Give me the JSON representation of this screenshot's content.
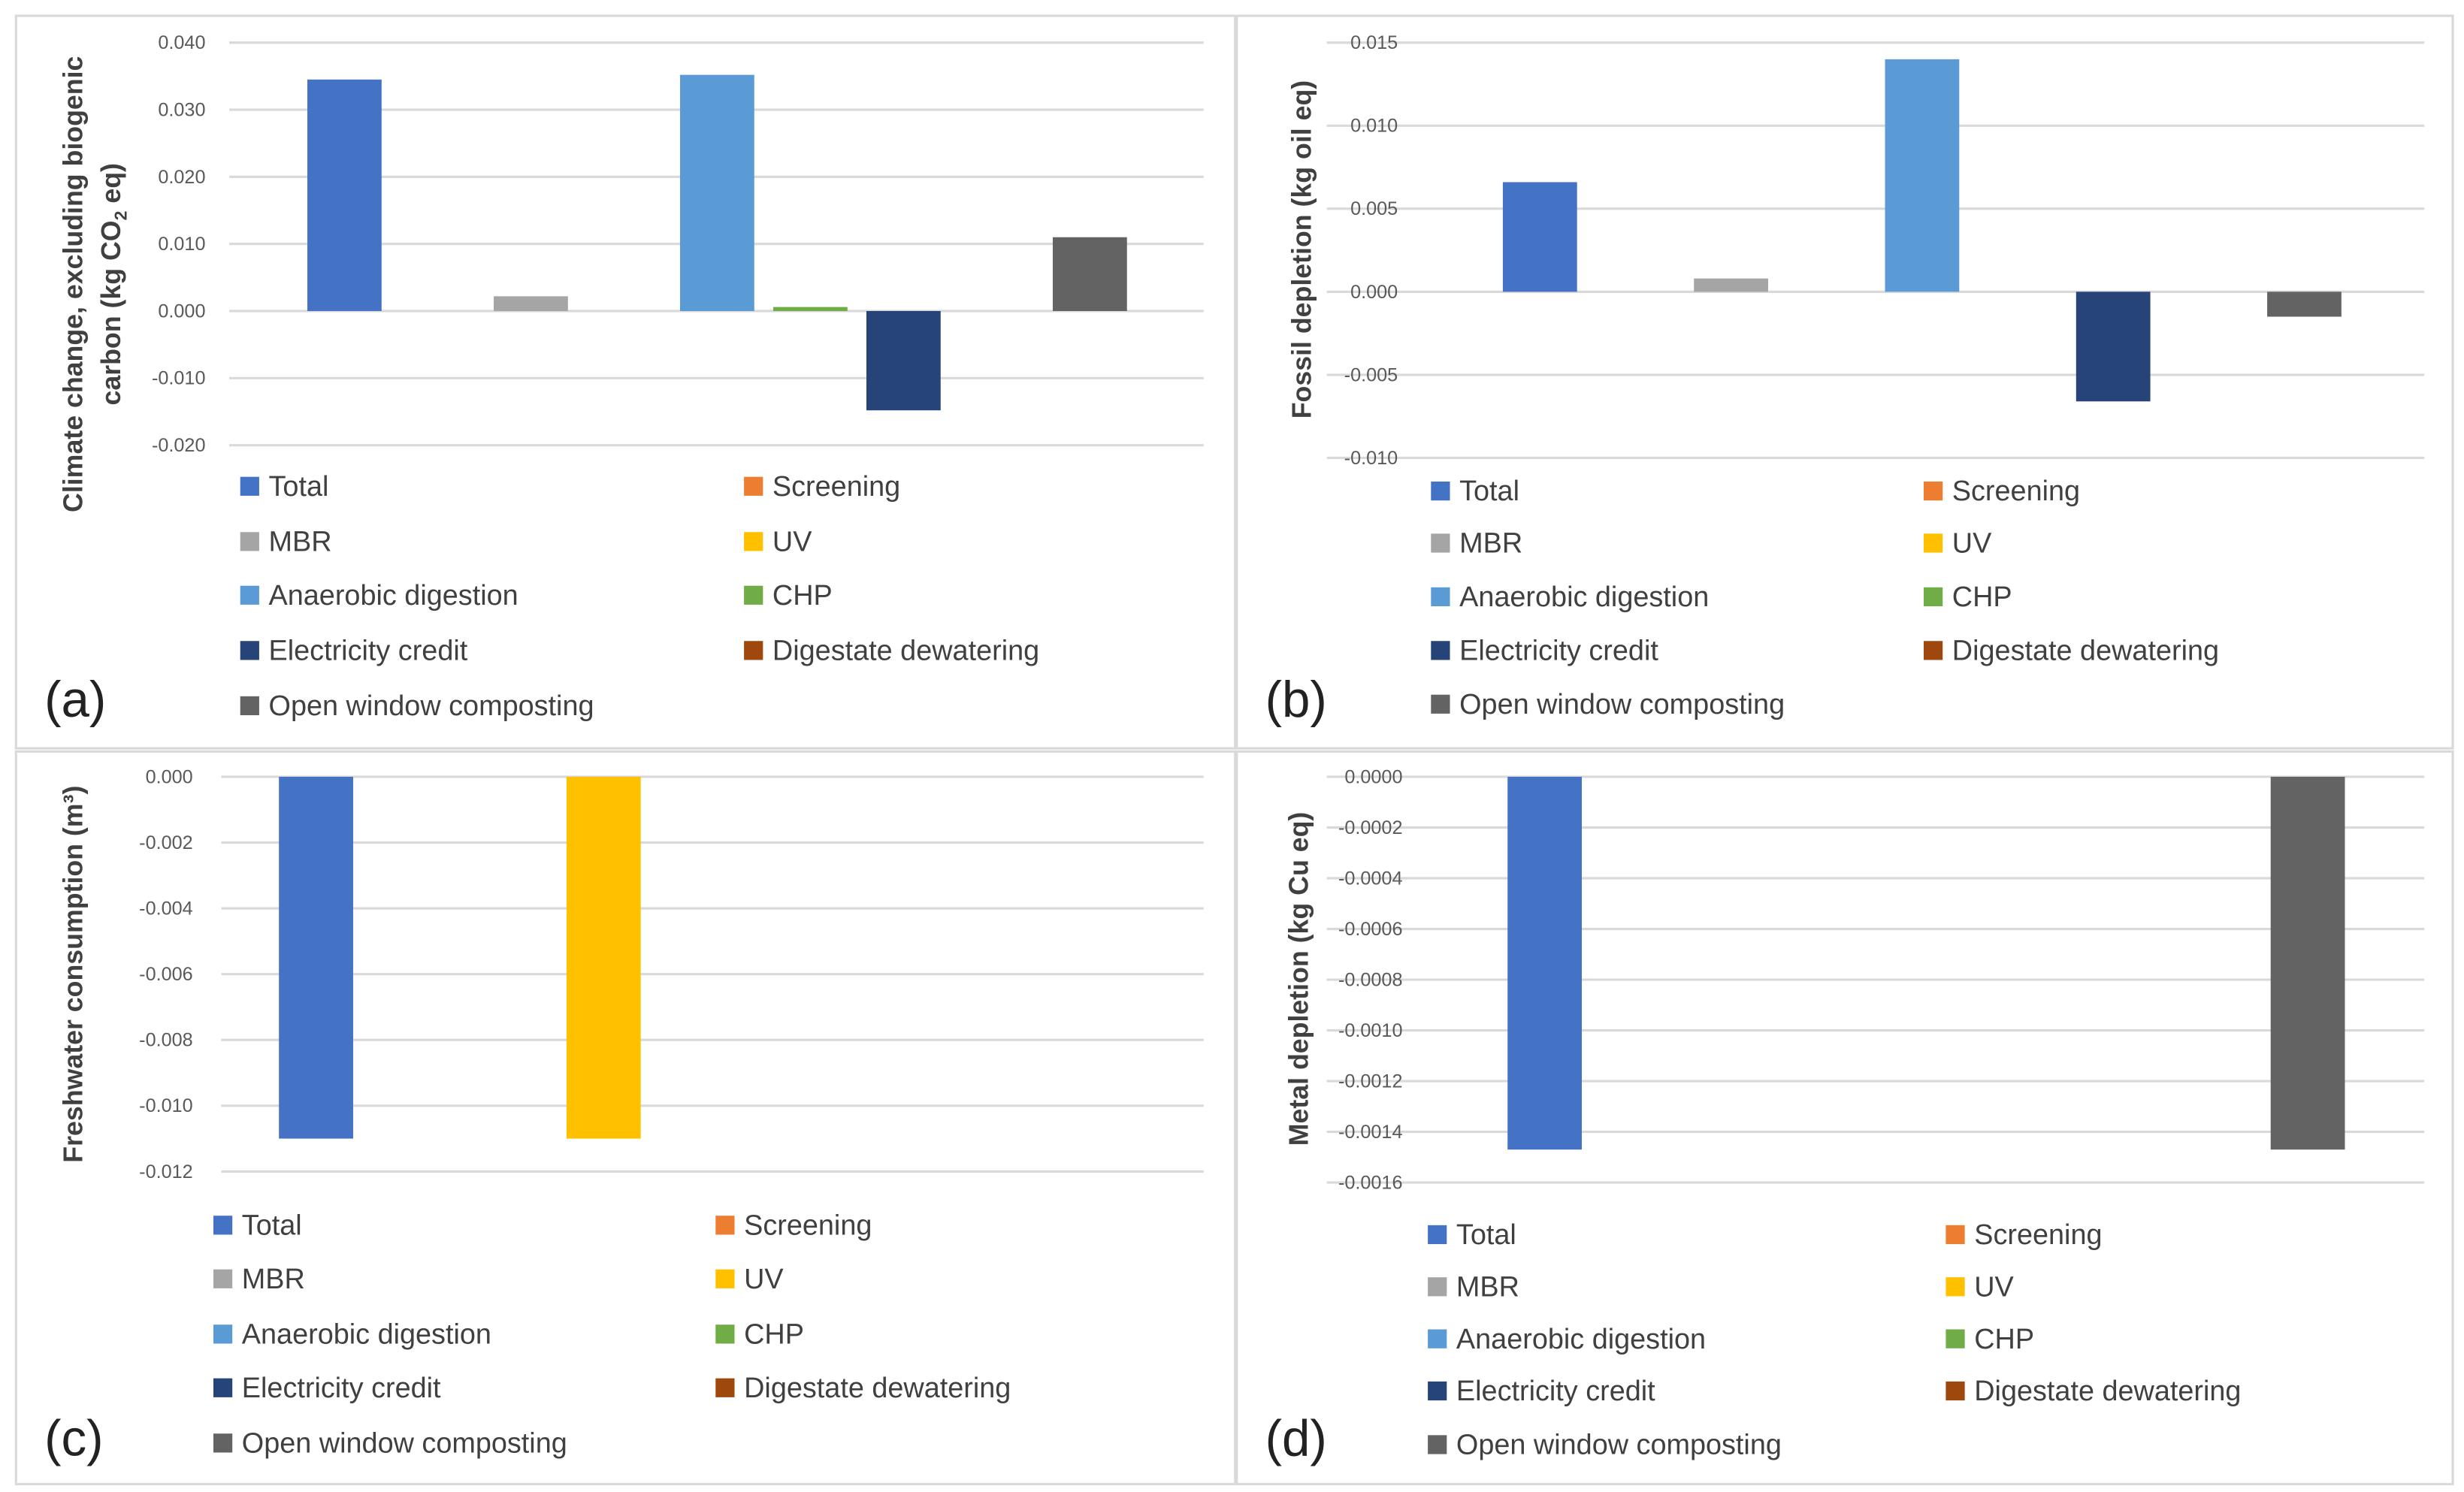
{
  "series": [
    {
      "name": "Total",
      "color": "#4472C4"
    },
    {
      "name": "Screening",
      "color": "#ED7D31"
    },
    {
      "name": "MBR",
      "color": "#A5A5A5"
    },
    {
      "name": "UV",
      "color": "#FFC000"
    },
    {
      "name": "Anaerobic digestion",
      "color": "#5B9BD5"
    },
    {
      "name": "CHP",
      "color": "#70AD47"
    },
    {
      "name": "Electricity credit",
      "color": "#264478"
    },
    {
      "name": "Digestate dewatering",
      "color": "#9E480E"
    },
    {
      "name": "Open window composting",
      "color": "#636363"
    }
  ],
  "chart_data": [
    {
      "type": "bar",
      "panel_label": "(a)",
      "ylabel_line1": "Climate change, excluding biogenic",
      "ylabel_line2_pre": "carbon (kg CO",
      "ylabel_line2_sub": "2",
      "ylabel_line2_post": " eq)",
      "ylim": [
        -0.02,
        0.04
      ],
      "ticks": [
        "0.040",
        "0.030",
        "0.020",
        "0.010",
        "0.000",
        "-0.010",
        "-0.020"
      ],
      "tick_values": [
        0.04,
        0.03,
        0.02,
        0.01,
        0,
        -0.01,
        -0.02
      ],
      "values": [
        0.0345,
        null,
        0.0022,
        null,
        0.0352,
        0.0006,
        -0.0148,
        null,
        0.011
      ]
    },
    {
      "type": "bar",
      "panel_label": "(b)",
      "ylabel_line1": "Fossil depletion (kg oil eq)",
      "ylim": [
        -0.01,
        0.015
      ],
      "ticks": [
        "0.015",
        "0.010",
        "0.005",
        "0.000",
        "-0.005",
        "-0.010"
      ],
      "tick_values": [
        0.015,
        0.01,
        0.005,
        0,
        -0.005,
        -0.01
      ],
      "values": [
        0.0066,
        null,
        0.0008,
        null,
        0.014,
        null,
        -0.0066,
        null,
        -0.0015
      ]
    },
    {
      "type": "bar",
      "panel_label": "(c)",
      "ylabel_line1": "Freshwater consumption (m³)",
      "ylim": [
        -0.012,
        0
      ],
      "ticks": [
        "0.000",
        "-0.002",
        "-0.004",
        "-0.006",
        "-0.008",
        "-0.010",
        "-0.012"
      ],
      "tick_values": [
        0,
        -0.002,
        -0.004,
        -0.006,
        -0.008,
        -0.01,
        -0.012
      ],
      "values": [
        -0.011,
        null,
        null,
        -0.011,
        null,
        null,
        null,
        null,
        null
      ]
    },
    {
      "type": "bar",
      "panel_label": "(d)",
      "ylabel_line1": "Metal depletion (kg Cu eq)",
      "ylim": [
        -0.0016,
        0
      ],
      "ticks": [
        "0.0000",
        "-0.0002",
        "-0.0004",
        "-0.0006",
        "-0.0008",
        "-0.0010",
        "-0.0012",
        "-0.0014",
        "-0.0016"
      ],
      "tick_values": [
        0,
        -0.0002,
        -0.0004,
        -0.0006,
        -0.0008,
        -0.001,
        -0.0012,
        -0.0014,
        -0.0016
      ],
      "values": [
        -0.00147,
        null,
        null,
        null,
        null,
        null,
        null,
        null,
        -0.00147
      ]
    }
  ]
}
